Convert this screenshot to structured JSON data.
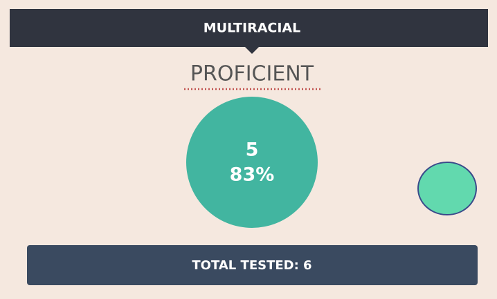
{
  "header": {
    "title": "MULTIRACIAL"
  },
  "label": "PROFICIENT",
  "circle": {
    "count": "5",
    "percent": "83%"
  },
  "footer": {
    "text": "TOTAL TESTED: 6"
  }
}
